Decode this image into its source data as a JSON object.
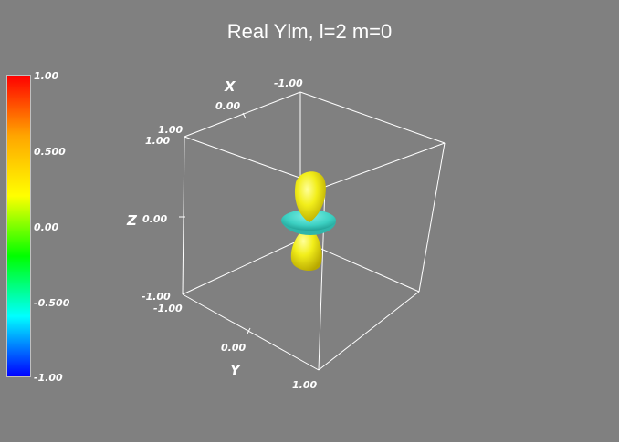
{
  "title": "Real Ylm, l=2 m=0",
  "colorbar": {
    "labels": [
      "1.00",
      "0.500",
      "0.00",
      "-0.500",
      "-1.00"
    ],
    "colors": [
      "#ff0000",
      "#ffa500",
      "#ffff00",
      "#00ff00",
      "#00ffff",
      "#0000ff"
    ]
  },
  "axes": {
    "x_title": "X",
    "y_title": "Y",
    "z_title": "Z",
    "x_ticks": [
      "-1.00",
      "0.00",
      "1.00"
    ],
    "y_ticks": [
      "-1.00",
      "0.00",
      "1.00"
    ],
    "z_ticks": [
      "-1.00",
      "0.00",
      "1.00"
    ]
  },
  "surface": {
    "lobe_color": "#ffff00",
    "torus_color": "#33d8c8"
  }
}
